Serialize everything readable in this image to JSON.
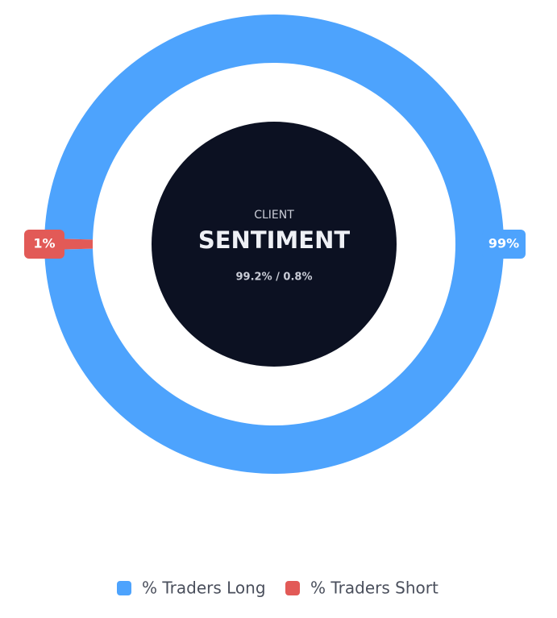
{
  "chart_data": {
    "type": "doughnut",
    "subtitle": "CLIENT",
    "title": "SENTIMENT",
    "center_text": "99.2% / 0.8%",
    "categories": [
      "% Traders Long",
      "% Traders Short"
    ],
    "values": [
      99.2,
      0.8
    ],
    "value_labels": [
      "99%",
      "1%"
    ],
    "colors": [
      "#4da3fd",
      "#e25a57"
    ]
  }
}
